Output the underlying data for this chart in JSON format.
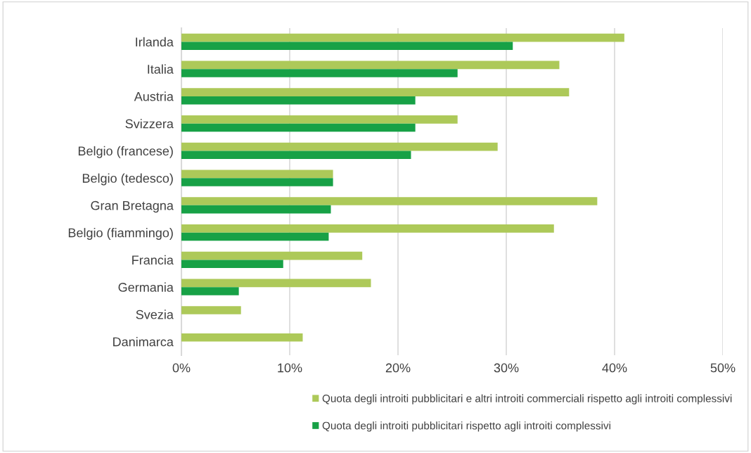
{
  "chart_data": {
    "type": "bar",
    "orientation": "horizontal",
    "categories": [
      "Irlanda",
      "Italia",
      "Austria",
      "Svizzera",
      "Belgio (francese)",
      "Belgio (tedesco)",
      "Gran Bretagna",
      "Belgio (fiammingo)",
      "Francia",
      "Germania",
      "Svezia",
      "Danimarca"
    ],
    "series": [
      {
        "name": "Quota degli introiti pubblicitari e altri introiti commerciali rispetto agli introiti complessivi",
        "color": "#adc959",
        "values": [
          40.9,
          34.9,
          35.8,
          25.5,
          29.2,
          14.0,
          38.4,
          34.4,
          16.7,
          17.5,
          5.5,
          11.2
        ]
      },
      {
        "name": "Quota degli introiti pubblicitari rispetto agli introiti complessivi",
        "color": "#17a146",
        "values": [
          30.6,
          25.5,
          21.6,
          21.6,
          21.2,
          14.0,
          13.8,
          13.6,
          9.4,
          5.3,
          0,
          0
        ]
      }
    ],
    "xlim": [
      0,
      50
    ],
    "xticks": [
      {
        "value": 0,
        "label": "0%"
      },
      {
        "value": 10,
        "label": "10%"
      },
      {
        "value": 20,
        "label": "20%"
      },
      {
        "value": 30,
        "label": "30%"
      },
      {
        "value": 40,
        "label": "40%"
      },
      {
        "value": 50,
        "label": "50%"
      }
    ],
    "grid": "x",
    "legend": "bottom"
  }
}
